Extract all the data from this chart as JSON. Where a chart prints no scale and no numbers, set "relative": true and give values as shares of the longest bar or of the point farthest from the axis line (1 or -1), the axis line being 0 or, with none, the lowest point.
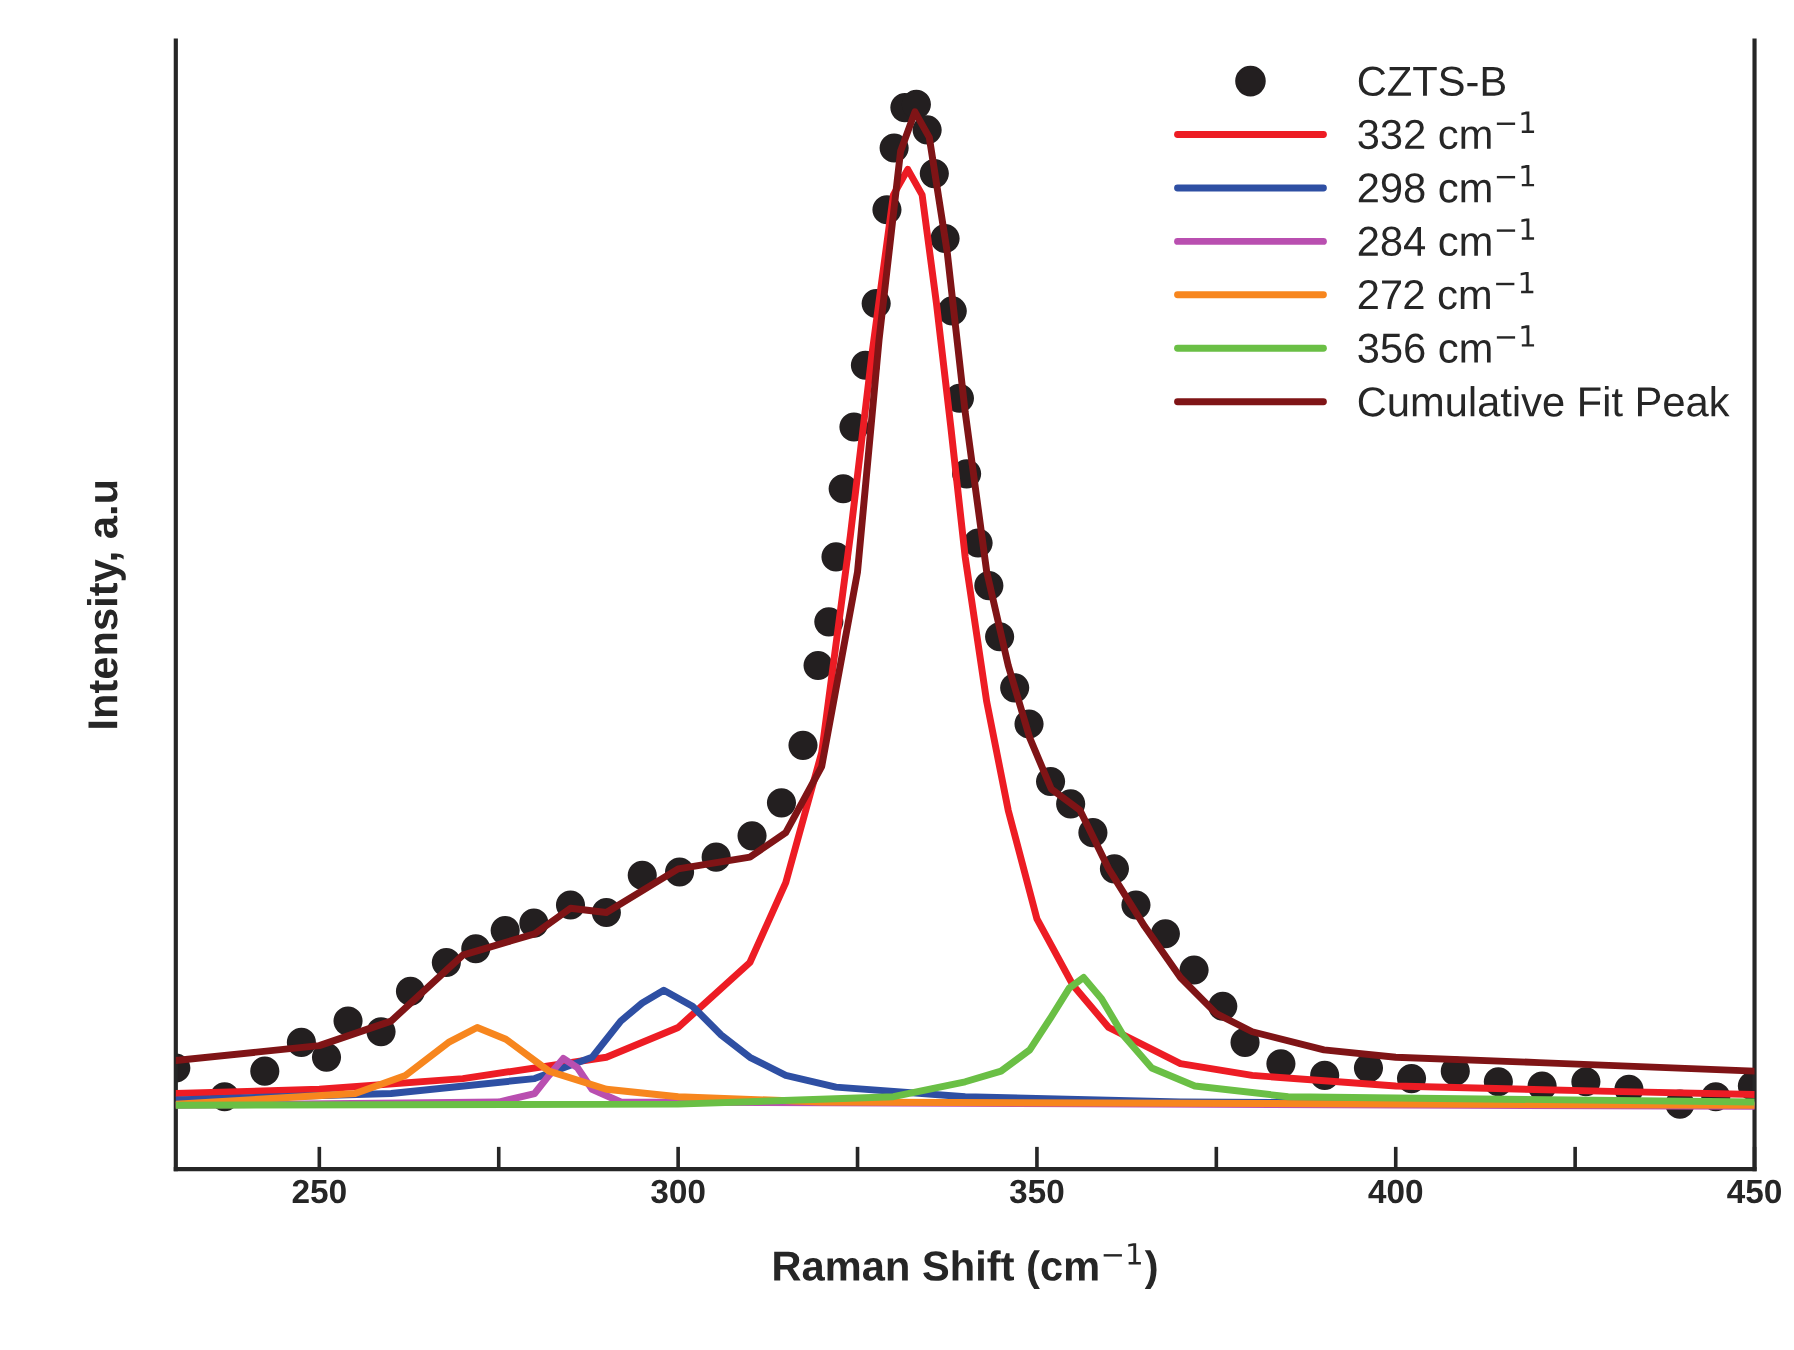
{
  "chart_data": {
    "type": "line",
    "relative": true,
    "xlabel": "Raman Shift (cm$^{−1}$)",
    "ylabel": "Intensity, a.u",
    "xlim": [
      230,
      450
    ],
    "xticks": [
      250,
      {
        "value": 275,
        "label": null
      },
      300,
      {
        "value": 325,
        "label": null
      },
      350,
      {
        "value": 375,
        "label": null
      },
      400,
      {
        "value": 425,
        "label": null
      },
      450
    ],
    "tick_labels": "x",
    "legend": "top right",
    "grid": false,
    "series": [
      {
        "name": "CZTS-B",
        "type": "scatter",
        "marker": "circle",
        "color": "#231f20",
        "x": [
          230,
          236.8,
          242.4,
          247.5,
          251,
          254,
          258.6,
          262.7,
          267.7,
          271.8,
          275.9,
          279.9,
          285,
          290,
          295,
          300.2,
          305.3,
          310.3,
          314.4,
          317.4,
          319.5,
          321,
          322,
          323,
          324.5,
          326.1,
          327.6,
          329.1,
          330.1,
          331.6,
          333.2,
          334.7,
          335.7,
          337.2,
          338.2,
          339.2,
          340.2,
          341.8,
          343.3,
          344.8,
          346.9,
          348.9,
          351.9,
          354.7,
          357.8,
          360.8,
          363.8,
          367.9,
          371.9,
          375.9,
          379,
          384,
          390.1,
          396.2,
          402.2,
          408.3,
          414.3,
          420.4,
          426.5,
          432.5,
          439.6,
          444.6,
          449.7
        ],
        "values": [
          0.095,
          0.068,
          0.092,
          0.119,
          0.105,
          0.139,
          0.129,
          0.167,
          0.194,
          0.207,
          0.224,
          0.231,
          0.248,
          0.241,
          0.276,
          0.279,
          0.293,
          0.313,
          0.344,
          0.398,
          0.473,
          0.514,
          0.575,
          0.639,
          0.697,
          0.755,
          0.813,
          0.901,
          0.959,
          0.997,
          1.0,
          0.976,
          0.935,
          0.874,
          0.806,
          0.724,
          0.653,
          0.588,
          0.548,
          0.5,
          0.452,
          0.418,
          0.364,
          0.343,
          0.316,
          0.282,
          0.248,
          0.221,
          0.187,
          0.153,
          0.119,
          0.099,
          0.088,
          0.095,
          0.085,
          0.092,
          0.082,
          0.078,
          0.082,
          0.075,
          0.061,
          0.068,
          0.078
        ]
      },
      {
        "name": "332 cm$^{−1}$",
        "color": "#ed1c24",
        "x": [
          230,
          250,
          270,
          290,
          300,
          310,
          315,
          320,
          324,
          327,
          330,
          332,
          334,
          336,
          338,
          340,
          343,
          346,
          350,
          355,
          360,
          370,
          380,
          400,
          430,
          450
        ],
        "values": [
          0.071,
          0.075,
          0.085,
          0.105,
          0.133,
          0.194,
          0.269,
          0.391,
          0.595,
          0.765,
          0.915,
          0.939,
          0.915,
          0.813,
          0.697,
          0.575,
          0.439,
          0.337,
          0.235,
          0.173,
          0.133,
          0.099,
          0.088,
          0.078,
          0.073,
          0.07
        ]
      },
      {
        "name": "298 cm$^{−1}$",
        "color": "#2e4fa3",
        "x": [
          230,
          260,
          280,
          288,
          292,
          295,
          298,
          302,
          306,
          310,
          315,
          322,
          340,
          370,
          450
        ],
        "values": [
          0.065,
          0.071,
          0.085,
          0.105,
          0.139,
          0.156,
          0.168,
          0.153,
          0.126,
          0.105,
          0.088,
          0.077,
          0.068,
          0.063,
          0.061
        ]
      },
      {
        "name": "284 cm$^{−1}$",
        "color": "#b94fb0",
        "x": [
          230,
          275,
          280,
          282,
          284,
          286,
          288,
          292,
          450
        ],
        "values": [
          0.06,
          0.063,
          0.071,
          0.088,
          0.104,
          0.095,
          0.075,
          0.063,
          0.059
        ]
      },
      {
        "name": "272 cm$^{−1}$",
        "color": "#f7861e",
        "x": [
          230,
          255,
          262,
          268,
          272,
          276,
          282,
          290,
          300,
          320,
          450
        ],
        "values": [
          0.061,
          0.071,
          0.088,
          0.119,
          0.133,
          0.122,
          0.092,
          0.075,
          0.068,
          0.063,
          0.06
        ]
      },
      {
        "name": "356 cm$^{−1}$",
        "color": "#6abf45",
        "x": [
          230,
          300,
          330,
          340,
          345,
          349,
          352,
          354.5,
          356.5,
          359,
          362,
          366,
          372,
          385,
          450
        ],
        "values": [
          0.06,
          0.061,
          0.068,
          0.082,
          0.092,
          0.112,
          0.143,
          0.17,
          0.18,
          0.16,
          0.126,
          0.095,
          0.078,
          0.068,
          0.063
        ]
      },
      {
        "name": "Cumulative Fit Peak",
        "color": "#7f1416",
        "x": [
          230,
          250,
          260,
          270,
          280,
          285,
          290,
          300,
          310,
          315,
          320,
          325,
          328,
          331,
          333,
          335,
          337.5,
          340,
          343,
          346,
          349,
          352,
          356,
          360,
          365,
          370,
          375,
          380,
          390,
          400,
          420,
          450
        ],
        "values": [
          0.102,
          0.116,
          0.139,
          0.201,
          0.221,
          0.245,
          0.241,
          0.282,
          0.293,
          0.316,
          0.378,
          0.561,
          0.779,
          0.956,
          0.993,
          0.969,
          0.861,
          0.711,
          0.561,
          0.473,
          0.405,
          0.357,
          0.337,
          0.282,
          0.228,
          0.18,
          0.146,
          0.129,
          0.112,
          0.105,
          0.1,
          0.092
        ]
      }
    ]
  }
}
